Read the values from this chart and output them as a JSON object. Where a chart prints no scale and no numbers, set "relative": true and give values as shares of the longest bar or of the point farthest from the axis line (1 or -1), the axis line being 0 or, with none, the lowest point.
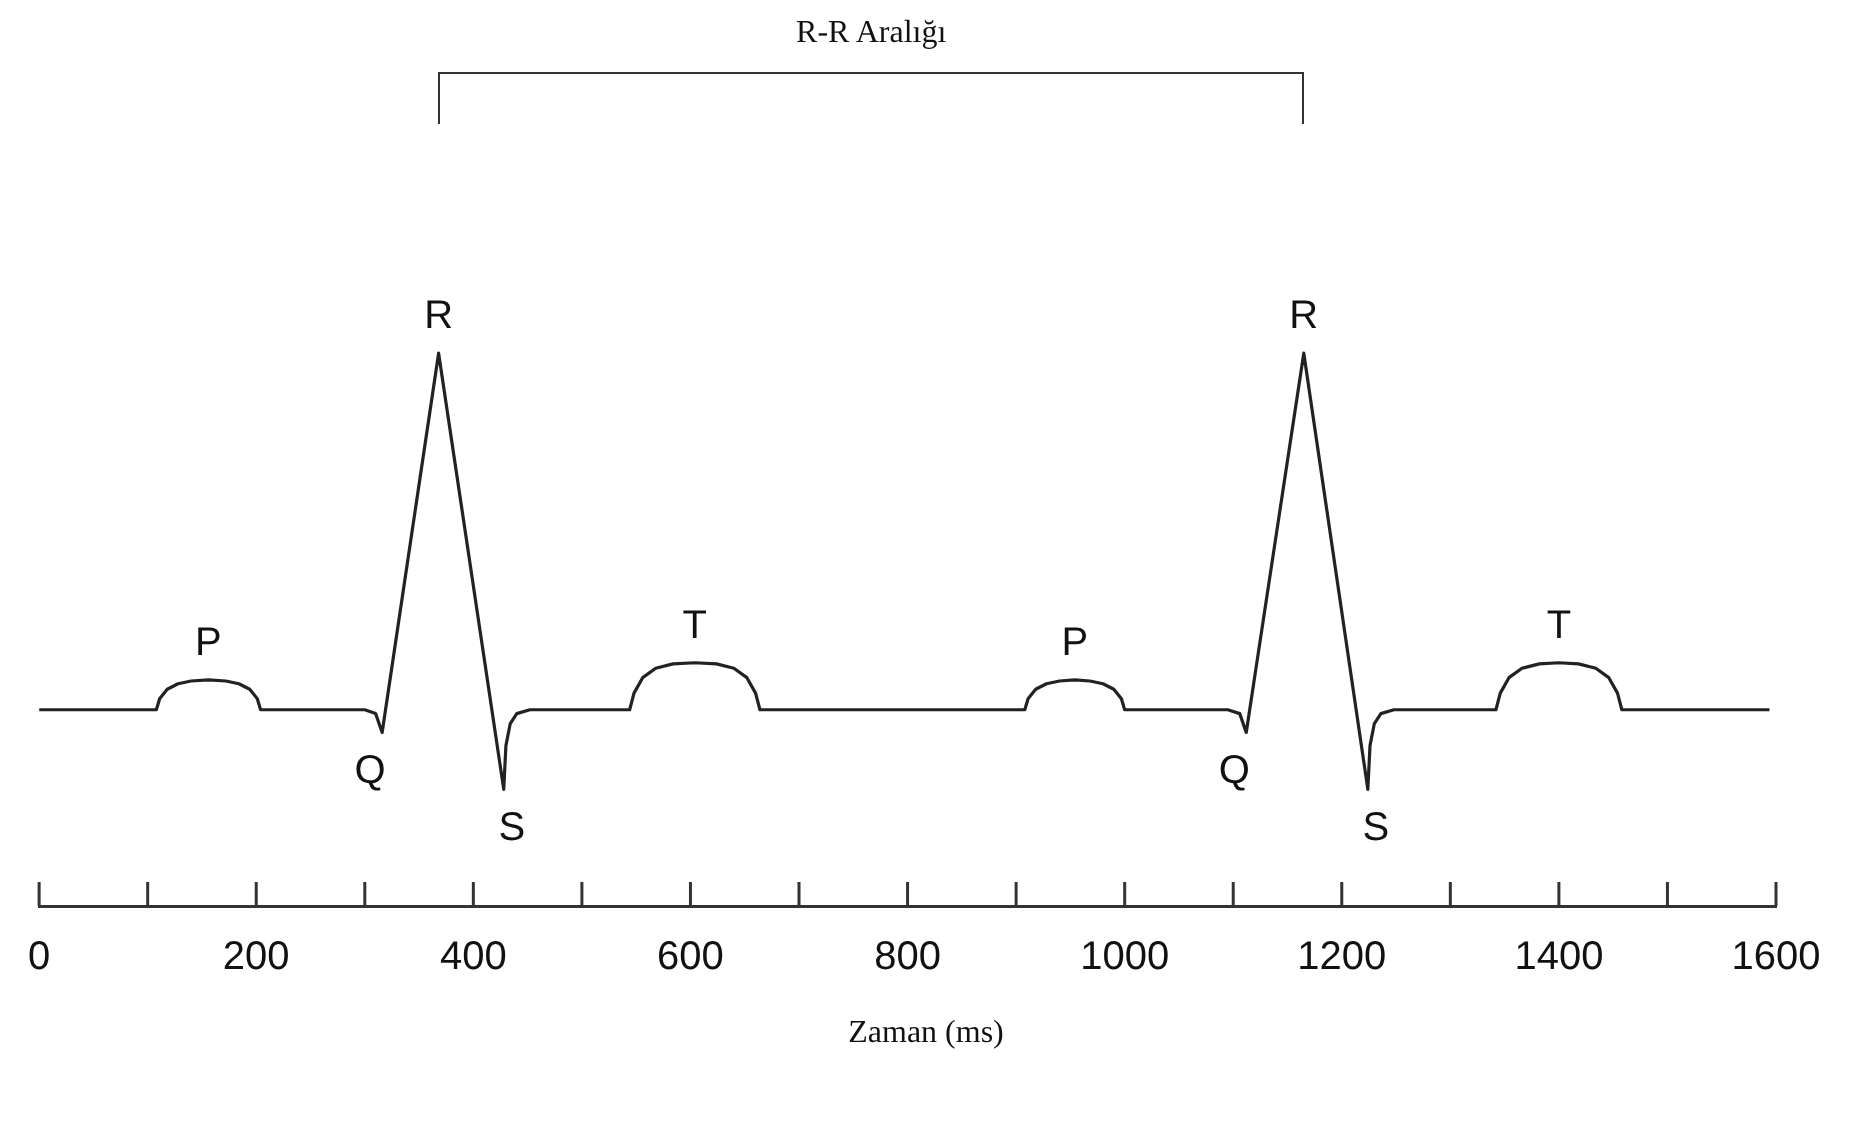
{
  "chart_data": {
    "type": "line",
    "relative": true,
    "xlabel": "Zaman (ms)",
    "xlim": [
      0,
      1600
    ],
    "xticks": [
      0,
      {
        "value": 100,
        "label": null
      },
      200,
      {
        "value": 300,
        "label": null
      },
      400,
      {
        "value": 500,
        "label": null
      },
      600,
      {
        "value": 700,
        "label": null
      },
      800,
      {
        "value": 900,
        "label": null
      },
      1000,
      {
        "value": 1100,
        "label": null
      },
      1200,
      {
        "value": 1300,
        "label": null
      },
      1400,
      {
        "value": 1500,
        "label": null
      },
      1600
    ],
    "grid": false,
    "legend": false,
    "marker": "none",
    "line_style": "solid",
    "series": [
      {
        "color": "#222222",
        "x": [
          0,
          108,
          111,
          118,
          128,
          140,
          156,
          172,
          184,
          194,
          201,
          204,
          300,
          310,
          316,
          368,
          428,
          430,
          434,
          440,
          452,
          544,
          548,
          556,
          568,
          584,
          604,
          624,
          640,
          652,
          660,
          664,
          908,
          911,
          918,
          928,
          940,
          954,
          968,
          980,
          990,
          997,
          1000,
          1095,
          1106,
          1112,
          1165,
          1224,
          1226,
          1230,
          1236,
          1248,
          1342,
          1346,
          1354,
          1366,
          1382,
          1400,
          1418,
          1434,
          1446,
          1454,
          1458,
          1594
        ],
        "values": [
          0.355,
          0.355,
          0.375,
          0.392,
          0.402,
          0.407,
          0.409,
          0.407,
          0.402,
          0.392,
          0.375,
          0.355,
          0.355,
          0.348,
          0.314,
          1,
          0.211,
          0.29,
          0.33,
          0.348,
          0.355,
          0.355,
          0.385,
          0.413,
          0.43,
          0.438,
          0.44,
          0.438,
          0.43,
          0.413,
          0.385,
          0.355,
          0.355,
          0.375,
          0.392,
          0.402,
          0.407,
          0.409,
          0.407,
          0.402,
          0.392,
          0.375,
          0.355,
          0.355,
          0.348,
          0.314,
          1,
          0.211,
          0.29,
          0.33,
          0.348,
          0.355,
          0.355,
          0.385,
          0.413,
          0.43,
          0.438,
          0.44,
          0.438,
          0.43,
          0.413,
          0.385,
          0.355,
          0.355
        ]
      }
    ],
    "annotations": [
      "R-R Aralığı",
      {
        "text": "P",
        "x": 156,
        "y": 0.409
      },
      {
        "text": "Q",
        "x": 316,
        "y": 0.314
      },
      {
        "text": "R",
        "x": 368,
        "y": 1
      },
      {
        "text": "S",
        "x": 428,
        "y": 0.211
      },
      {
        "text": "T",
        "x": 604,
        "y": 0.44
      },
      {
        "text": "P",
        "x": 954,
        "y": 0.409
      },
      {
        "text": "Q",
        "x": 1112,
        "y": 0.314
      },
      {
        "text": "R",
        "x": 1165,
        "y": 1
      },
      {
        "text": "S",
        "x": 1224,
        "y": 0.211
      },
      {
        "text": "T",
        "x": 1400,
        "y": 0.44
      }
    ]
  }
}
